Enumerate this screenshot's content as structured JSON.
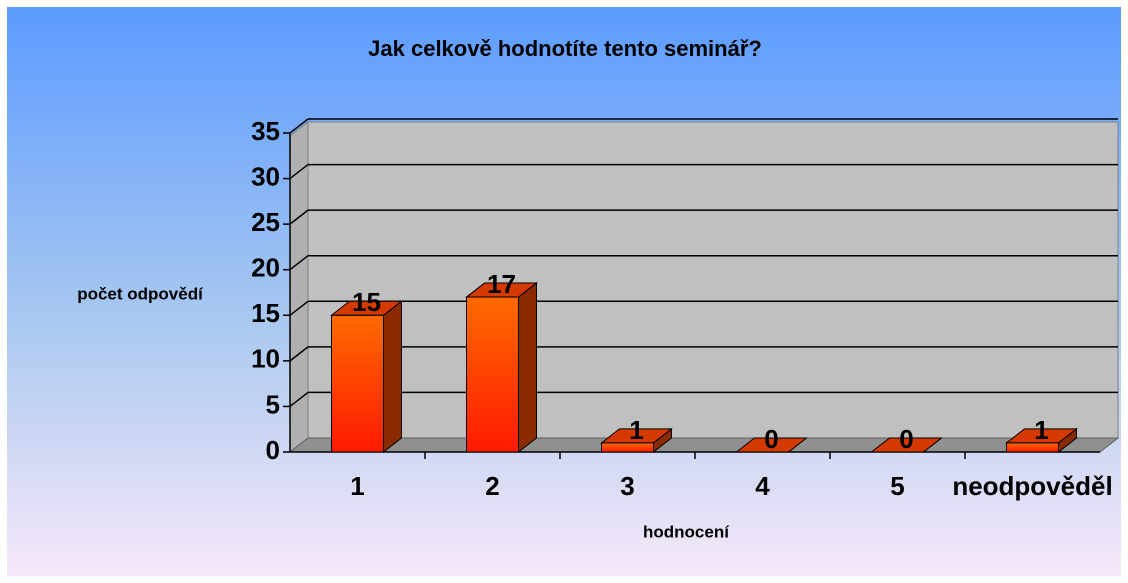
{
  "chart_data": {
    "type": "bar",
    "title": "Jak celkově hodnotíte tento seminář?",
    "y_label": "počet odpovědí",
    "x_label": "hodnocení",
    "categories": [
      "1",
      "2",
      "3",
      "4",
      "5",
      "neodpověděl"
    ],
    "values": [
      15,
      17,
      1,
      0,
      0,
      1
    ],
    "color": "#ff5a00",
    "ylim": [
      0,
      35
    ],
    "yticks": [
      0,
      5,
      10,
      15,
      20,
      25,
      30,
      35
    ],
    "grid": true
  }
}
